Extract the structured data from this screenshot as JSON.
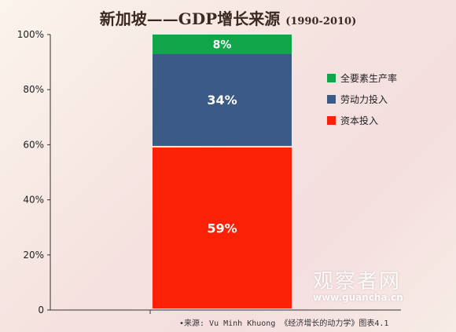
{
  "title": "新加坡——GDP增长来源",
  "title_years": "(1990-2010)",
  "source": "•来源: Vu Minh Khuong 《经济增长的动力学》图表4.1",
  "watermark": {
    "name": "观察者网",
    "url": "www.guancha.cn"
  },
  "colors": {
    "tfp": "#12a64a",
    "labor": "#3b5a86",
    "capital": "#fa2107",
    "axis": "#333333",
    "bar_label": "#ffffff"
  },
  "chart_data": {
    "type": "bar",
    "stacked": true,
    "categories": [
      ""
    ],
    "series": [
      {
        "name": "资本投入",
        "values": [
          59
        ],
        "label": "59%",
        "color": "#fa2107"
      },
      {
        "name": "劳动力投入",
        "values": [
          34
        ],
        "label": "34%",
        "color": "#3b5a86"
      },
      {
        "name": "全要素生产率",
        "values": [
          8
        ],
        "label": "8%",
        "color": "#12a64a"
      }
    ],
    "ylim": [
      0,
      100
    ],
    "yticks": [
      "0",
      "20%",
      "40%",
      "60%",
      "80%",
      "100%"
    ],
    "legend": [
      {
        "label": "全要素生产率",
        "color": "#12a64a"
      },
      {
        "label": "劳动力投入",
        "color": "#3b5a86"
      },
      {
        "label": "资本投入",
        "color": "#fa2107"
      }
    ],
    "legend_position": "right",
    "grid": false
  }
}
